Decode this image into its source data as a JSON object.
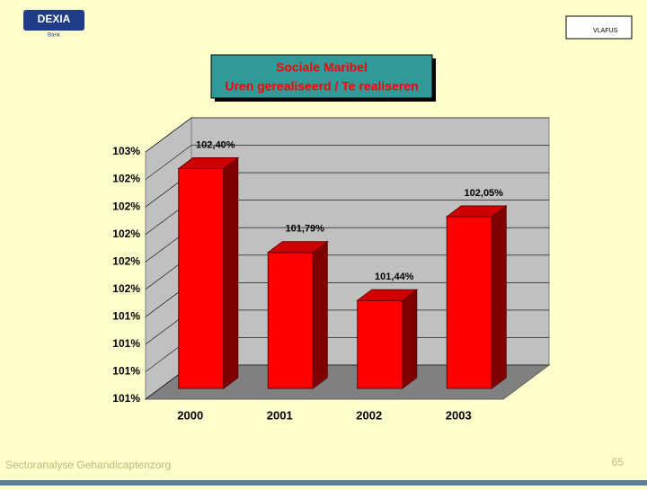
{
  "slide": {
    "logo_left": "DEXIA",
    "logo_left_sub": "Bank",
    "logo_right": "VLAFUS",
    "footer": "Sectoranalyse Gehandicaptenzorg",
    "page_number": "65"
  },
  "chart_data": {
    "type": "bar3d",
    "title": [
      "Sociale Maribel",
      "Uren gerealiseerd  / Te realiseren"
    ],
    "categories": [
      "2000",
      "2001",
      "2002",
      "2003"
    ],
    "values": [
      102.4,
      101.79,
      101.44,
      102.05
    ],
    "value_labels": [
      "102,40%",
      "101,79%",
      "101,44%",
      "102,05%"
    ],
    "color": "#ff0000",
    "ylim": [
      100.8,
      102.6
    ],
    "yticks": [
      {
        "value": 100.8,
        "label": "101%"
      },
      {
        "value": 101.0,
        "label": "101%"
      },
      {
        "value": 101.2,
        "label": "101%"
      },
      {
        "value": 101.4,
        "label": "101%"
      },
      {
        "value": 101.6,
        "label": "102%"
      },
      {
        "value": 101.8,
        "label": "102%"
      },
      {
        "value": 102.0,
        "label": "102%"
      },
      {
        "value": 102.2,
        "label": "102%"
      },
      {
        "value": 102.4,
        "label": "102%"
      },
      {
        "value": 102.6,
        "label": "103%"
      }
    ],
    "grid": true
  }
}
